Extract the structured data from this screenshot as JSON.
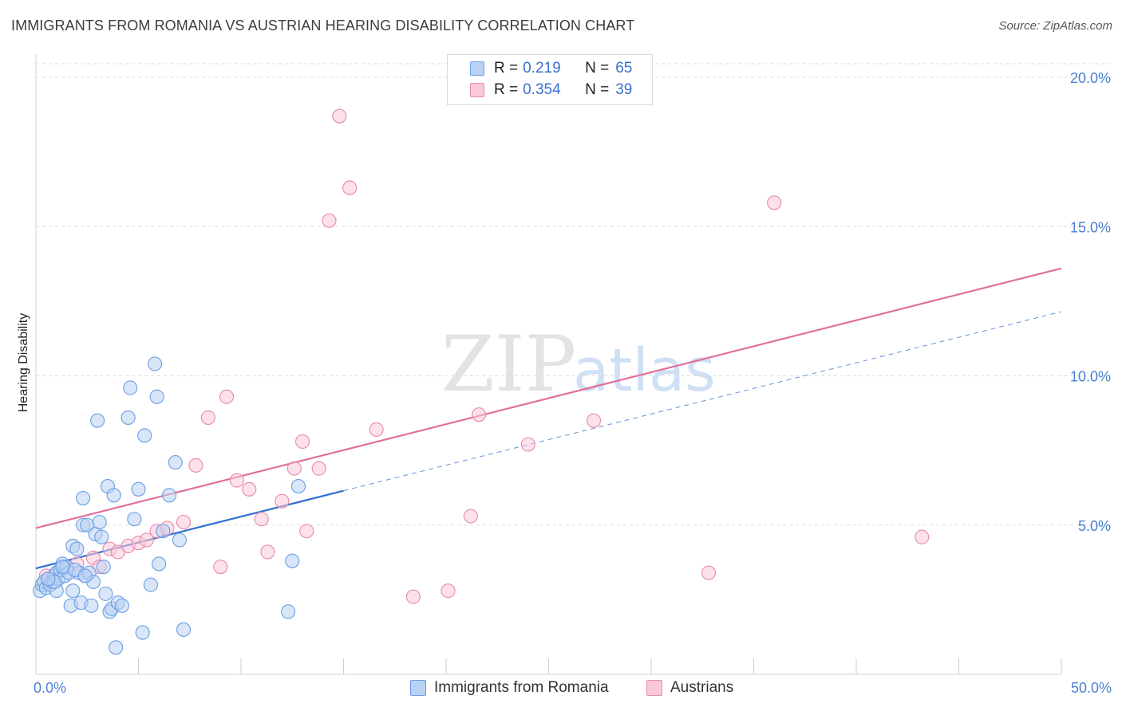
{
  "title": "IMMIGRANTS FROM ROMANIA VS AUSTRIAN HEARING DISABILITY CORRELATION CHART",
  "source": "Source: ZipAtlas.com",
  "watermark": {
    "zip": "ZIP",
    "atlas": "atlas"
  },
  "legend": {
    "r_label": "R =",
    "n_label": "N =",
    "rows": [
      {
        "r": "0.219",
        "n": "65",
        "fill": "#b9d2f3",
        "stroke": "#6a9ee6"
      },
      {
        "r": "0.354",
        "n": "39",
        "fill": "#f9c9d8",
        "stroke": "#e88aa8"
      }
    ]
  },
  "bottom_legend": [
    {
      "label": "Immigrants from Romania",
      "fill": "#b9d2f3",
      "stroke": "#6a9ee6"
    },
    {
      "label": "Austrians",
      "fill": "#f9c9d8",
      "stroke": "#e88aa8"
    }
  ],
  "chart_data": {
    "type": "scatter",
    "title": "IMMIGRANTS FROM ROMANIA VS AUSTRIAN HEARING DISABILITY CORRELATION CHART",
    "xlabel": "",
    "ylabel": "Hearing Disability",
    "xlim": [
      0,
      50
    ],
    "ylim": [
      0,
      20
    ],
    "x_tick_labels": [
      {
        "value": 0,
        "label": "0.0%"
      },
      {
        "value": 50,
        "label": "50.0%"
      }
    ],
    "y_tick_labels": [
      {
        "value": 5,
        "label": "5.0%"
      },
      {
        "value": 10,
        "label": "10.0%"
      },
      {
        "value": 15,
        "label": "15.0%"
      },
      {
        "value": 20,
        "label": "20.0%"
      }
    ],
    "x_minor_ticks": [
      5,
      10,
      15,
      20,
      25,
      30,
      35,
      40,
      45,
      50
    ],
    "series": [
      {
        "name": "Immigrants from Romania",
        "color": "#6a9ee6",
        "fill": "#b9d2f3",
        "trend_color": "#2f6fd0",
        "trend": {
          "x0": 0,
          "y0": 3.55,
          "x1": 15,
          "y1": 6.15,
          "dash_to_x": 50,
          "dash_to_y": 12.15
        },
        "points": [
          [
            0.2,
            2.8
          ],
          [
            0.3,
            3.0
          ],
          [
            0.4,
            3.1
          ],
          [
            0.5,
            2.9
          ],
          [
            0.6,
            3.2
          ],
          [
            0.7,
            3.0
          ],
          [
            0.8,
            3.1
          ],
          [
            0.9,
            3.3
          ],
          [
            1.0,
            3.4
          ],
          [
            1.0,
            2.8
          ],
          [
            1.1,
            3.2
          ],
          [
            1.2,
            3.5
          ],
          [
            1.3,
            3.7
          ],
          [
            1.4,
            3.3
          ],
          [
            1.5,
            3.6
          ],
          [
            1.6,
            3.4
          ],
          [
            1.7,
            2.3
          ],
          [
            1.8,
            2.8
          ],
          [
            1.8,
            4.3
          ],
          [
            2.0,
            4.2
          ],
          [
            2.1,
            3.4
          ],
          [
            2.2,
            2.4
          ],
          [
            2.3,
            5.0
          ],
          [
            2.3,
            5.9
          ],
          [
            2.4,
            3.3
          ],
          [
            2.5,
            5.0
          ],
          [
            2.6,
            3.4
          ],
          [
            2.7,
            2.3
          ],
          [
            2.8,
            3.1
          ],
          [
            2.9,
            4.7
          ],
          [
            3.0,
            8.5
          ],
          [
            3.1,
            5.1
          ],
          [
            3.2,
            4.6
          ],
          [
            3.3,
            3.6
          ],
          [
            3.4,
            2.7
          ],
          [
            3.5,
            6.3
          ],
          [
            3.6,
            2.1
          ],
          [
            3.7,
            2.2
          ],
          [
            3.8,
            6.0
          ],
          [
            3.9,
            0.9
          ],
          [
            4.0,
            2.4
          ],
          [
            4.2,
            2.3
          ],
          [
            4.5,
            8.6
          ],
          [
            4.6,
            9.6
          ],
          [
            4.8,
            5.2
          ],
          [
            5.0,
            6.2
          ],
          [
            5.2,
            1.4
          ],
          [
            5.3,
            8.0
          ],
          [
            5.6,
            3.0
          ],
          [
            5.8,
            10.4
          ],
          [
            5.9,
            9.3
          ],
          [
            6.0,
            3.7
          ],
          [
            6.2,
            4.8
          ],
          [
            6.5,
            6.0
          ],
          [
            6.8,
            7.1
          ],
          [
            7.0,
            4.5
          ],
          [
            7.2,
            1.5
          ],
          [
            12.3,
            2.1
          ],
          [
            12.5,
            3.8
          ],
          [
            12.8,
            6.3
          ],
          [
            1.9,
            3.5
          ],
          [
            0.9,
            3.1
          ],
          [
            2.4,
            3.3
          ],
          [
            1.3,
            3.6
          ],
          [
            0.6,
            3.2
          ]
        ]
      },
      {
        "name": "Austrians",
        "color": "#e88aa8",
        "fill": "#f9c9d8",
        "trend_color": "#e0709a",
        "trend": {
          "x0": 0,
          "y0": 4.9,
          "x1": 50,
          "y1": 13.6
        },
        "points": [
          [
            0.5,
            3.3
          ],
          [
            1.2,
            3.5
          ],
          [
            2.0,
            3.7
          ],
          [
            2.8,
            3.9
          ],
          [
            3.1,
            3.6
          ],
          [
            3.6,
            4.2
          ],
          [
            4.0,
            4.1
          ],
          [
            4.5,
            4.3
          ],
          [
            5.0,
            4.4
          ],
          [
            5.4,
            4.5
          ],
          [
            5.9,
            4.8
          ],
          [
            6.4,
            4.9
          ],
          [
            7.2,
            5.1
          ],
          [
            7.8,
            7.0
          ],
          [
            8.4,
            8.6
          ],
          [
            9.0,
            3.6
          ],
          [
            9.3,
            9.3
          ],
          [
            9.8,
            6.5
          ],
          [
            10.4,
            6.2
          ],
          [
            11.0,
            5.2
          ],
          [
            11.3,
            4.1
          ],
          [
            12.0,
            5.8
          ],
          [
            12.6,
            6.9
          ],
          [
            13.0,
            7.8
          ],
          [
            13.2,
            4.8
          ],
          [
            13.8,
            6.9
          ],
          [
            14.3,
            15.2
          ],
          [
            14.8,
            18.7
          ],
          [
            15.3,
            16.3
          ],
          [
            16.6,
            8.2
          ],
          [
            18.4,
            2.6
          ],
          [
            20.1,
            2.8
          ],
          [
            21.2,
            5.3
          ],
          [
            21.6,
            8.7
          ],
          [
            24.0,
            7.7
          ],
          [
            27.2,
            8.5
          ],
          [
            32.8,
            3.4
          ],
          [
            36.0,
            15.8
          ],
          [
            43.2,
            4.6
          ]
        ]
      }
    ]
  }
}
